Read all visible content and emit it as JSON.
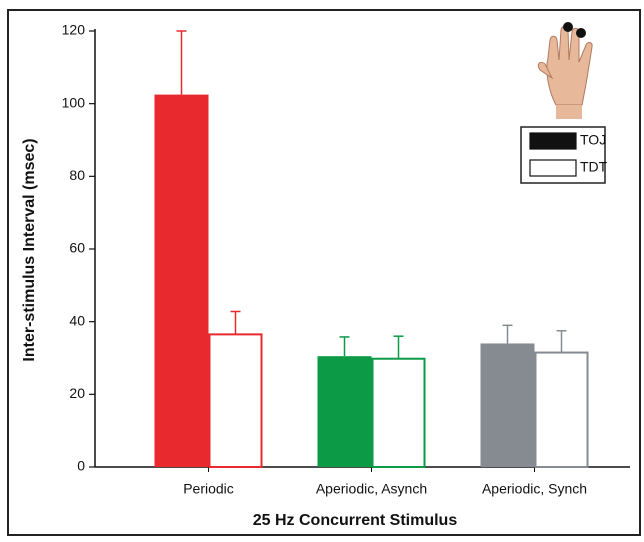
{
  "chart_data": {
    "type": "bar",
    "x_label": "25 Hz Concurrent Stimulus",
    "y_label": "Inter-stimulus Interval (msec)",
    "categories": [
      "Periodic",
      "Aperiodic, Asynch",
      "Aperiodic, Synch"
    ],
    "category_colors": [
      "#e8292e",
      "#0c9a47",
      "#858b91"
    ],
    "series": [
      {
        "name": "TOJ",
        "color": "#111111",
        "style": "filled",
        "values": [
          102.5,
          30.5,
          34
        ],
        "errors": [
          17.5,
          5.3,
          5
        ]
      },
      {
        "name": "TDT",
        "color": "#ffffff",
        "style": "outline",
        "values": [
          36.5,
          29.8,
          31.5
        ],
        "errors": [
          6.3,
          6.2,
          6
        ]
      }
    ],
    "ylim": [
      0,
      120
    ],
    "yticks": [
      0,
      20,
      40,
      60,
      80,
      100,
      120
    ],
    "legend": "upper right"
  }
}
